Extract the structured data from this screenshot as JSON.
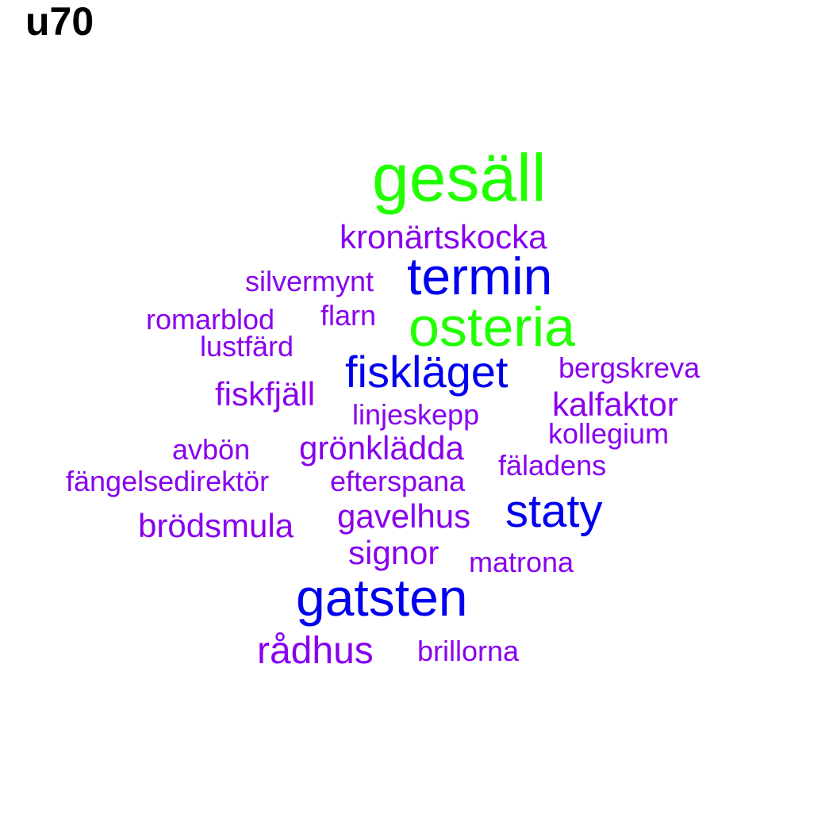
{
  "title": "u70",
  "colors": {
    "green": "#22ff00",
    "blue": "#0000ee",
    "purple": "#8800ee"
  },
  "words": [
    {
      "text": "gesäll",
      "weight": 10,
      "color": "green"
    },
    {
      "text": "osteria",
      "weight": 8,
      "color": "green"
    },
    {
      "text": "termin",
      "weight": 7,
      "color": "blue"
    },
    {
      "text": "gatsten",
      "weight": 7,
      "color": "blue"
    },
    {
      "text": "staty",
      "weight": 6,
      "color": "blue"
    },
    {
      "text": "fiskläget",
      "weight": 6,
      "color": "blue"
    },
    {
      "text": "kronärtskocka",
      "weight": 4,
      "color": "purple"
    },
    {
      "text": "rådhus",
      "weight": 4,
      "color": "purple"
    },
    {
      "text": "brödsmula",
      "weight": 4,
      "color": "purple"
    },
    {
      "text": "grönklädda",
      "weight": 4,
      "color": "purple"
    },
    {
      "text": "fiskfjäll",
      "weight": 4,
      "color": "purple"
    },
    {
      "text": "kalfaktor",
      "weight": 4,
      "color": "purple"
    },
    {
      "text": "signor",
      "weight": 4,
      "color": "purple"
    },
    {
      "text": "gavelhus",
      "weight": 4,
      "color": "purple"
    },
    {
      "text": "silvermynt",
      "weight": 3,
      "color": "purple"
    },
    {
      "text": "romarblod",
      "weight": 3,
      "color": "purple"
    },
    {
      "text": "flarn",
      "weight": 3,
      "color": "purple"
    },
    {
      "text": "lustfärd",
      "weight": 3,
      "color": "purple"
    },
    {
      "text": "bergskreva",
      "weight": 3,
      "color": "purple"
    },
    {
      "text": "linjeskepp",
      "weight": 3,
      "color": "purple"
    },
    {
      "text": "kollegium",
      "weight": 3,
      "color": "purple"
    },
    {
      "text": "avbön",
      "weight": 3,
      "color": "purple"
    },
    {
      "text": "fäladens",
      "weight": 3,
      "color": "purple"
    },
    {
      "text": "fängelsedirektör",
      "weight": 3,
      "color": "purple"
    },
    {
      "text": "efterspana",
      "weight": 3,
      "color": "purple"
    },
    {
      "text": "matrona",
      "weight": 3,
      "color": "purple"
    },
    {
      "text": "brillorna",
      "weight": 3,
      "color": "purple"
    }
  ]
}
